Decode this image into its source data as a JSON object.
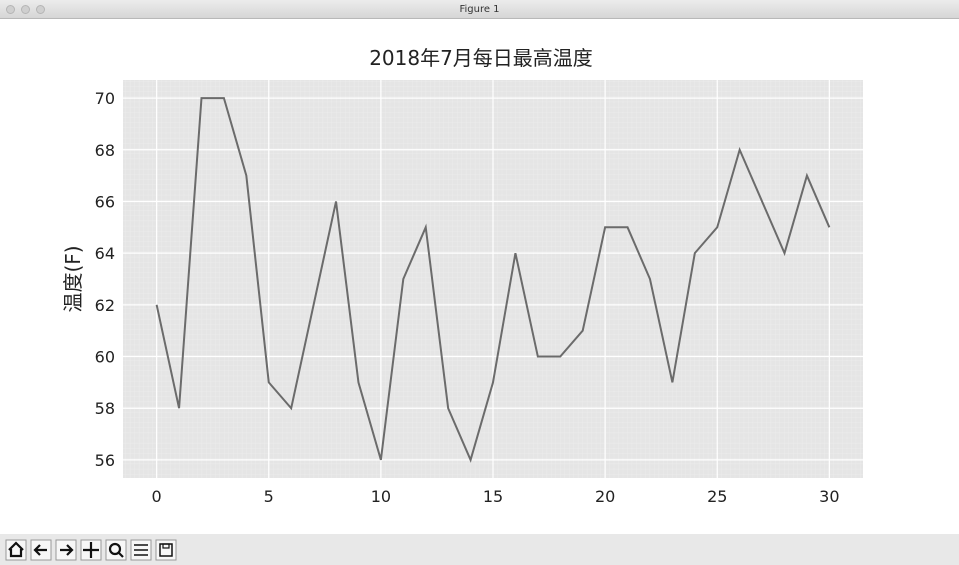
{
  "window": {
    "title": "Figure 1"
  },
  "chart_data": {
    "type": "line",
    "title": "2018年7月每日最高温度",
    "ylabel": "温度(F)",
    "x": [
      0,
      1,
      2,
      3,
      4,
      5,
      6,
      7,
      8,
      9,
      10,
      11,
      12,
      13,
      14,
      15,
      16,
      17,
      18,
      19,
      20,
      21,
      22,
      23,
      24,
      25,
      26,
      27,
      28,
      29,
      30
    ],
    "values": [
      62,
      58,
      70,
      70,
      67,
      59,
      58,
      62,
      66,
      59,
      56,
      63,
      65,
      58,
      56,
      59,
      64,
      60,
      60,
      61,
      65,
      65,
      63,
      59,
      64,
      65,
      68,
      66,
      64,
      67,
      65
    ],
    "color": "#6b6b6b",
    "xlim": [
      -1.5,
      31.5
    ],
    "xticks": [
      0,
      5,
      10,
      15,
      20,
      25,
      30
    ],
    "ylim": [
      55.3,
      70.7
    ],
    "yticks": [
      56,
      58,
      60,
      62,
      64,
      66,
      68,
      70
    ],
    "grid": true
  }
}
